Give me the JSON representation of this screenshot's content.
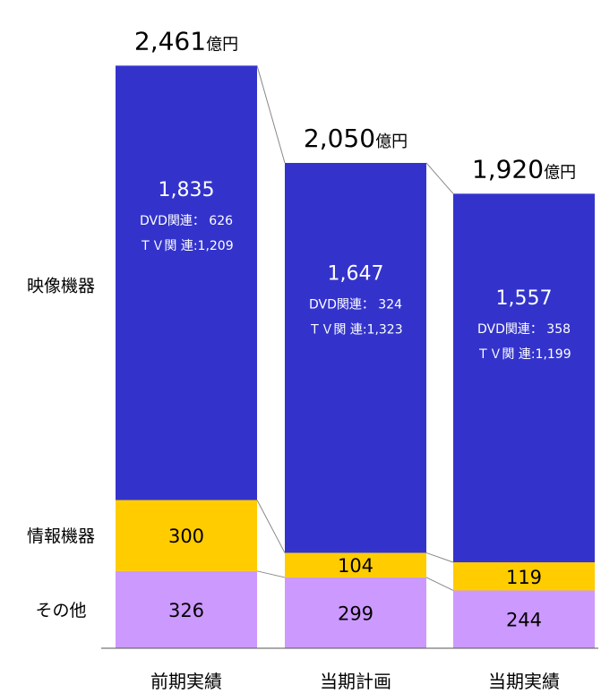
{
  "chart_data": {
    "type": "bar",
    "stacked": true,
    "categories": [
      "前期実績",
      "当期計画",
      "当期実績"
    ],
    "totals": [
      "2,461",
      "2,050",
      "1,920"
    ],
    "total_unit": "億円",
    "series": [
      {
        "name": "映像機器",
        "color": "#3333cc",
        "values": [
          1835,
          1647,
          1557
        ],
        "labels": [
          "1,835",
          "1,647",
          "1,557"
        ],
        "breakdown": [
          [
            "DVD関連：  626",
            "ＴＶ関 連:1,209"
          ],
          [
            "DVD関連：  324",
            "ＴＶ関 連:1,323"
          ],
          [
            "DVD関連：  358",
            "ＴＶ関 連:1,199"
          ]
        ]
      },
      {
        "name": "情報機器",
        "color": "#ffcc00",
        "values": [
          300,
          104,
          119
        ],
        "labels": [
          "300",
          "104",
          "119"
        ]
      },
      {
        "name": "その他",
        "color": "#cc99ff",
        "values": [
          326,
          299,
          244
        ],
        "labels": [
          "326",
          "299",
          "244"
        ]
      }
    ]
  }
}
